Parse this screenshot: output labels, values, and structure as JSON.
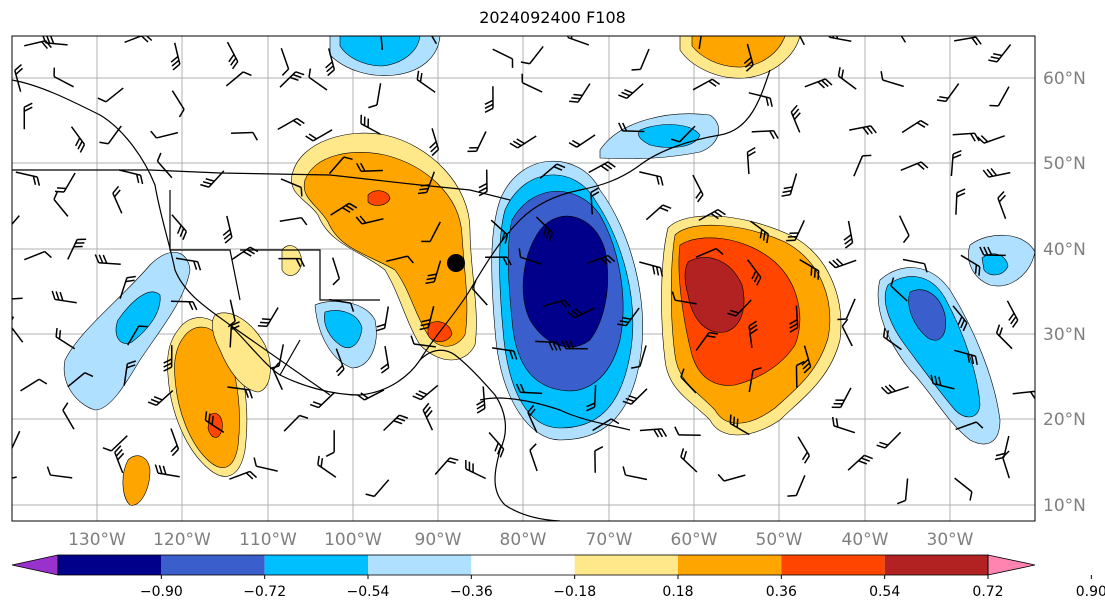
{
  "title": "2024092400 F108",
  "lon_labels": [
    "130°W",
    "120°W",
    "110°W",
    "100°W",
    "90°W",
    "80°W",
    "70°W",
    "60°W",
    "50°W",
    "40°W",
    "30°W"
  ],
  "lat_labels": [
    "60°N",
    "50°N",
    "40°N",
    "30°N",
    "20°N",
    "10°N"
  ],
  "colorbar": {
    "ticks": [
      "−0.90",
      "−0.72",
      "−0.54",
      "−0.36",
      "−0.18",
      "0.18",
      "0.36",
      "0.54",
      "0.72",
      "0.90"
    ],
    "colors": [
      "#9932cc",
      "#00008b",
      "#3a5fcd",
      "#00bfff",
      "#b0e0ff",
      "#ffffff",
      "#ffe88a",
      "#ffa500",
      "#ff4500",
      "#b22222",
      "#ff85b0"
    ]
  },
  "colors": {
    "dark_blue": "#3a4fc0",
    "blue": "#00bfff",
    "light_blue": "#b0e0ff",
    "navy": "#1a2a9a",
    "yellow": "#ffe88a",
    "orange": "#ffa500",
    "red": "#ff4500",
    "dark_red": "#b22222"
  }
}
